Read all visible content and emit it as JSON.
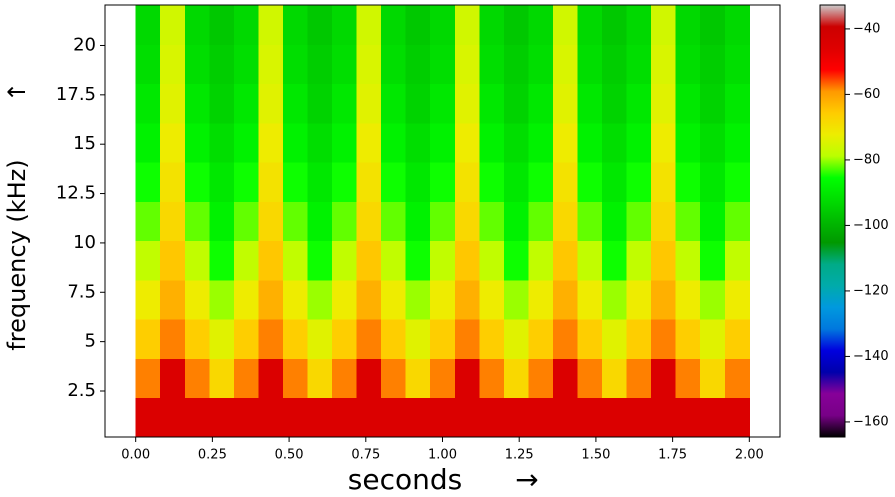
{
  "chart_data": {
    "type": "spectrogram",
    "xlabel": "seconds",
    "xlabel_arrow": "→",
    "ylabel": "frequency (kHz)",
    "ylabel_arrow": "↑",
    "colormap": "nipy_spectral",
    "xlim": [
      -0.1,
      2.1
    ],
    "ylim": [
      0.17,
      22.05
    ],
    "zlim": [
      -164.6,
      -32.7
    ],
    "x_extent": [
      0,
      2
    ],
    "y_extent": [
      0.17,
      22.05
    ],
    "xticks": [
      {
        "value": 0,
        "label": "0.00"
      },
      {
        "value": 0.25,
        "label": "0.25"
      },
      {
        "value": 0.5,
        "label": "0.50"
      },
      {
        "value": 0.75,
        "label": "0.75"
      },
      {
        "value": 1,
        "label": "1.00"
      },
      {
        "value": 1.25,
        "label": "1.25"
      },
      {
        "value": 1.5,
        "label": "1.50"
      },
      {
        "value": 1.75,
        "label": "1.75"
      },
      {
        "value": 2,
        "label": "2.00"
      }
    ],
    "yticks": [
      2.5,
      5,
      7.5,
      10,
      12.5,
      15,
      17.5,
      20
    ],
    "zticks": [
      {
        "value": -40,
        "label": "−40"
      },
      {
        "value": -60,
        "label": "−60"
      },
      {
        "value": -80,
        "label": "−80"
      },
      {
        "value": -100,
        "label": "−100"
      },
      {
        "value": -120,
        "label": "−120"
      },
      {
        "value": -140,
        "label": "−140"
      },
      {
        "value": -160,
        "label": "−160"
      }
    ],
    "z": [
      [
        -45,
        -45,
        -45,
        -45,
        -45,
        -45,
        -45,
        -45,
        -45,
        -45,
        -45,
        -45,
        -45,
        -45,
        -45,
        -45,
        -45,
        -45,
        -45,
        -45,
        -45,
        -45,
        -45,
        -45,
        -45
      ],
      [
        -58,
        -45,
        -58,
        -68,
        -58,
        -45,
        -58,
        -68,
        -58,
        -45,
        -58,
        -68,
        -58,
        -45,
        -58,
        -68,
        -58,
        -45,
        -58,
        -68,
        -58,
        -45,
        -58,
        -68,
        -58
      ],
      [
        -66,
        -58,
        -66,
        -74,
        -66,
        -58,
        -66,
        -74,
        -66,
        -58,
        -66,
        -74,
        -66,
        -58,
        -66,
        -74,
        -66,
        -58,
        -66,
        -74,
        -66,
        -58,
        -66,
        -74,
        -66
      ],
      [
        -72,
        -62,
        -72,
        -80,
        -72,
        -62,
        -72,
        -80,
        -72,
        -62,
        -72,
        -80,
        -72,
        -62,
        -72,
        -80,
        -72,
        -62,
        -72,
        -80,
        -72,
        -62,
        -72,
        -80,
        -72
      ],
      [
        -78,
        -65,
        -78,
        -85,
        -78,
        -65,
        -78,
        -85,
        -78,
        -65,
        -78,
        -85,
        -78,
        -65,
        -78,
        -85,
        -78,
        -65,
        -78,
        -85,
        -78,
        -65,
        -78,
        -85,
        -78
      ],
      [
        -82,
        -68,
        -82,
        -88,
        -82,
        -68,
        -82,
        -88,
        -82,
        -68,
        -82,
        -88,
        -82,
        -68,
        -82,
        -88,
        -82,
        -68,
        -82,
        -88,
        -82,
        -68,
        -82,
        -88,
        -82
      ],
      [
        -85,
        -70,
        -85,
        -90,
        -85,
        -70,
        -85,
        -90,
        -85,
        -70,
        -85,
        -90,
        -85,
        -70,
        -85,
        -90,
        -85,
        -70,
        -85,
        -90,
        -85,
        -70,
        -85,
        -90,
        -85
      ],
      [
        -88,
        -72,
        -88,
        -92,
        -88,
        -72,
        -88,
        -92,
        -88,
        -72,
        -88,
        -92,
        -88,
        -72,
        -88,
        -92,
        -88,
        -72,
        -88,
        -92,
        -88,
        -72,
        -88,
        -92,
        -88
      ],
      [
        -90,
        -74,
        -90,
        -94,
        -90,
        -74,
        -90,
        -94,
        -90,
        -74,
        -90,
        -94,
        -90,
        -74,
        -90,
        -94,
        -90,
        -74,
        -90,
        -94,
        -90,
        -74,
        -90,
        -94,
        -90
      ],
      [
        -92,
        -75,
        -92,
        -95,
        -92,
        -75,
        -92,
        -95,
        -92,
        -75,
        -92,
        -95,
        -92,
        -75,
        -92,
        -95,
        -92,
        -75,
        -92,
        -95,
        -92,
        -75,
        -92,
        -95,
        -92
      ],
      [
        -93,
        -76,
        -93,
        -96,
        -93,
        -76,
        -93,
        -96,
        -93,
        -76,
        -93,
        -96,
        -93,
        -76,
        -93,
        -96,
        -93,
        -76,
        -93,
        -96,
        -93,
        -76,
        -93,
        -96,
        -93
      ]
    ]
  }
}
